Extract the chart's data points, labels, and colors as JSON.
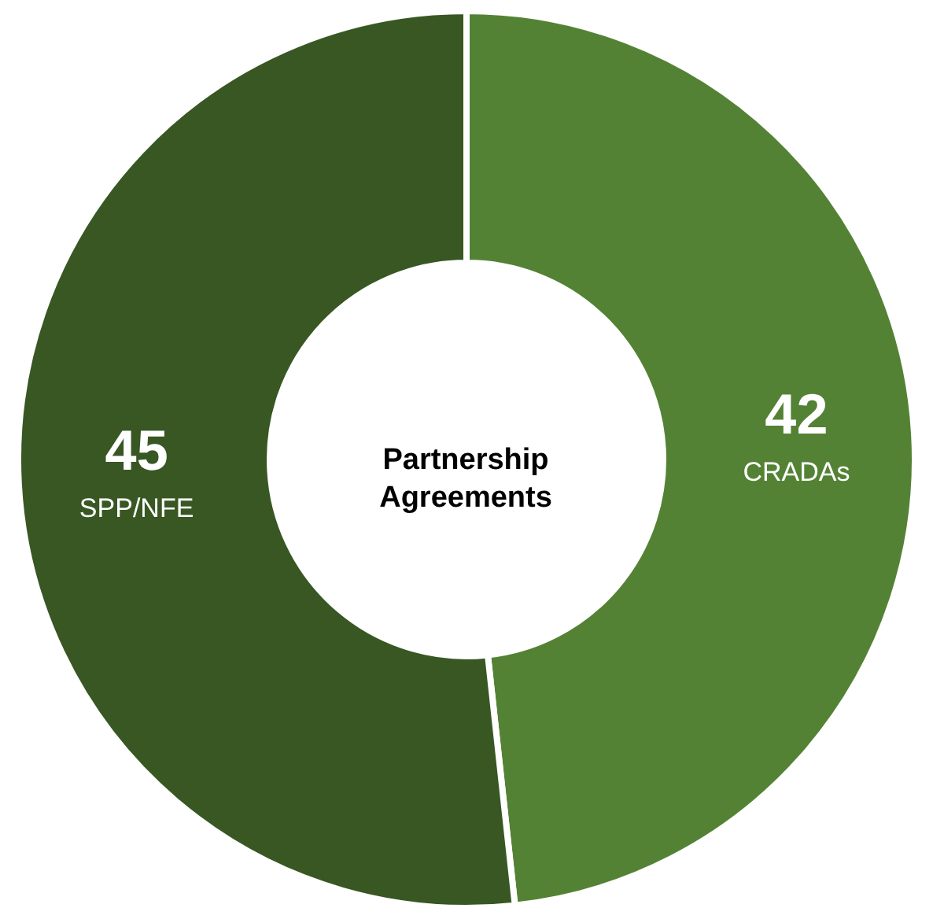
{
  "chart_data": {
    "type": "donut",
    "title": "Partnership Agreements",
    "categories": [
      "CRADAs",
      "SPP/NFE"
    ],
    "values": [
      42,
      45
    ],
    "colors": [
      "#548235",
      "#385723"
    ],
    "data_labels": true
  }
}
